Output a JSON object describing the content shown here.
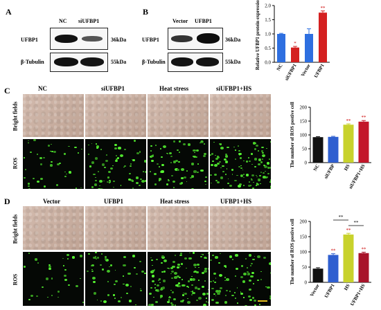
{
  "panels": {
    "A": "A",
    "B": "B",
    "C": "C",
    "D": "D"
  },
  "panelA": {
    "cols": [
      "NC",
      "siUFBP1"
    ],
    "rows": [
      {
        "protein": "UFBP1",
        "size": "36kDa"
      },
      {
        "protein": "β-Tubulin",
        "size": "55kDa"
      }
    ]
  },
  "panelB": {
    "cols": [
      "Vector",
      "UFBP1"
    ],
    "rows": [
      {
        "protein": "UFBP1",
        "size": "36kDa"
      },
      {
        "protein": "β-Tubulin",
        "size": "55kDa"
      }
    ]
  },
  "panelC": {
    "cols": [
      "NC",
      "siUFBP1",
      "Heat stress",
      "siUFBP1+HS"
    ],
    "rows": [
      "Bright fields",
      "ROS"
    ]
  },
  "panelD": {
    "cols": [
      "Vector",
      "UFBP1",
      "Heat stress",
      "UFBP1+HS"
    ],
    "rows": [
      "Bright fields",
      "ROS"
    ]
  },
  "chart_data": [
    {
      "type": "bar",
      "ylabel": "Relative UFBP1 protein expression",
      "categories": [
        "NC",
        "siUFBP1",
        "Vector",
        "UFBP1"
      ],
      "values": [
        1.0,
        0.52,
        1.0,
        1.75
      ],
      "errors": [
        0.02,
        0.04,
        0.18,
        0.06
      ],
      "significance": [
        "",
        "*",
        "",
        "**"
      ],
      "colors": [
        "#2e6fe0",
        "#d42020",
        "#2e6fe0",
        "#d42020"
      ],
      "ylim": [
        0,
        2.0
      ],
      "yticks": [
        "0.0",
        "0.5",
        "1.0",
        "1.5",
        "2.0"
      ]
    },
    {
      "type": "bar",
      "ylabel": "The number of ROS postive cell",
      "categories": [
        "NC",
        "siUFBP",
        "HS",
        "siUFBP1+HS"
      ],
      "values": [
        92,
        93,
        137,
        148
      ],
      "errors": [
        2,
        2,
        3,
        4
      ],
      "significance": [
        "",
        "",
        "**",
        "**"
      ],
      "colors": [
        "#111111",
        "#2f5fd0",
        "#c8d22c",
        "#c3162a"
      ],
      "ylim": [
        0,
        200
      ],
      "yticks": [
        "0",
        "50",
        "100",
        "150",
        "200"
      ]
    },
    {
      "type": "bar",
      "ylabel": "The number of ROS postive cell",
      "categories": [
        "Vector",
        "UFBP1",
        "HS",
        "UFBP1+HS"
      ],
      "values": [
        45,
        90,
        157,
        96
      ],
      "errors": [
        3,
        4,
        4,
        3
      ],
      "significance": [
        "",
        "**",
        "**",
        "**"
      ],
      "brackets": [
        {
          "from": 1,
          "to": 2,
          "label": "**"
        },
        {
          "from": 2,
          "to": 3,
          "label": "**"
        }
      ],
      "colors": [
        "#111111",
        "#2f5fd0",
        "#c8d22c",
        "#a8142a"
      ],
      "ylim": [
        0,
        200
      ],
      "yticks": [
        "0",
        "50",
        "100",
        "150",
        "200"
      ]
    }
  ]
}
